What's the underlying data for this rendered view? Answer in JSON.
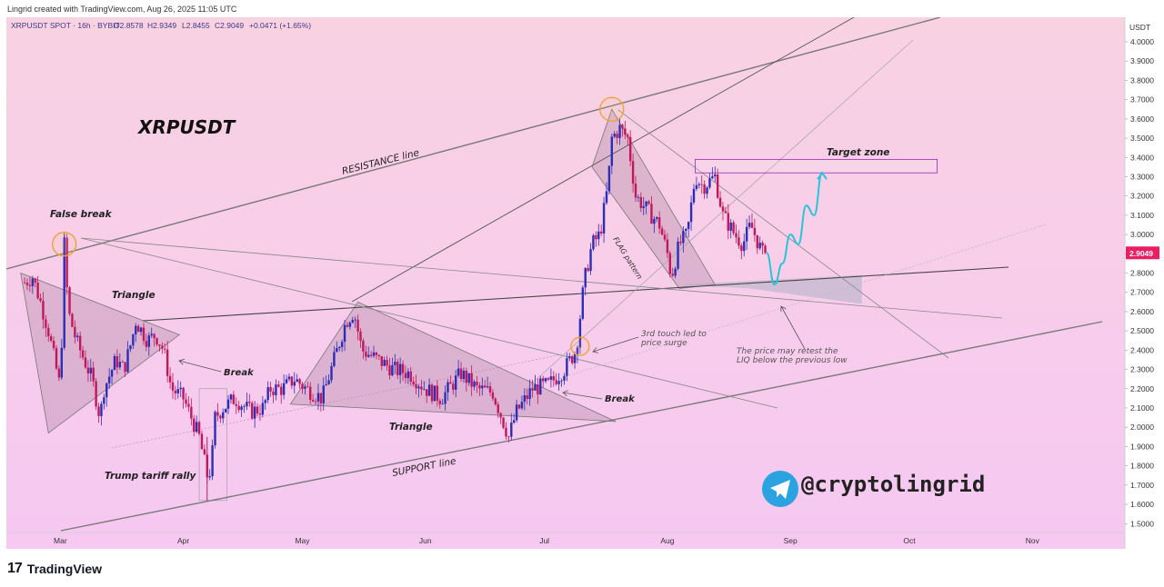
{
  "header": {
    "credit": "Lingrid created with TradingView.com, Aug 26, 2025 11:05 UTC"
  },
  "legend": {
    "symbol": "XRPUSDT SPOT · 16h · BYBIT",
    "open": "O2.8578",
    "high": "H2.9349",
    "low": "L2.8455",
    "close": "C2.9049",
    "change": "+0.0471 (+1.65%)"
  },
  "axis": {
    "currency": "USDT",
    "y_ticks": [
      "4.0000",
      "3.9000",
      "3.8000",
      "3.7000",
      "3.6000",
      "3.5000",
      "3.4000",
      "3.3000",
      "3.2000",
      "3.1000",
      "3.0000",
      "2.9000",
      "2.8000",
      "2.7000",
      "2.6000",
      "2.5000",
      "2.4000",
      "2.3000",
      "2.2000",
      "2.1000",
      "2.0000",
      "1.9000",
      "1.8000",
      "1.7000",
      "1.6000",
      "1.5000"
    ],
    "x_ticks": [
      "Mar",
      "Apr",
      "May",
      "Jun",
      "Jul",
      "Aug",
      "Sep",
      "Oct",
      "Nov"
    ],
    "last_price": "2.9049"
  },
  "annotations": {
    "title": "XRPUSDT",
    "resistance": "RESISTANCE line",
    "support": "SUPPORT line",
    "false_break": "False break",
    "triangle1": "Triangle",
    "break1": "Break",
    "trump": "Trump tariff rally",
    "triangle2": "Triangle",
    "break2": "Break",
    "third_touch_1": "3rd touch led to",
    "third_touch_2": "price surge",
    "flag": "FLAG pattern",
    "target": "Target zone",
    "retest_1": "The price may retest the",
    "retest_2": "LIQ below the previous low",
    "handle": "@cryptolingrid"
  },
  "footer": {
    "logo": "17",
    "brand": "TradingView"
  },
  "colors": {
    "bg_top": "#f9d2e2",
    "bg_bottom": "#f6c8f2",
    "candle_up": "#2b2fb8",
    "candle_down": "#c2185b",
    "last_price_bg": "#e91e63",
    "target_border": "#9c27b0",
    "projection": "#26c6da",
    "telegram": "#2aa3e0"
  },
  "chart_data": {
    "type": "candlestick",
    "title": "XRPUSDT",
    "symbol": "XRPUSDT",
    "timeframe": "16h",
    "exchange": "BYBIT",
    "ylim": [
      1.45,
      4.05
    ],
    "x_ticks": [
      "Mar",
      "Apr",
      "May",
      "Jun",
      "Jul",
      "Aug",
      "Sep",
      "Oct",
      "Nov"
    ],
    "close_path": [
      [
        "2025-02-20",
        2.75
      ],
      [
        "2025-02-22",
        2.78
      ],
      [
        "2025-02-24",
        2.65
      ],
      [
        "2025-02-26",
        2.5
      ],
      [
        "2025-02-28",
        2.3
      ],
      [
        "2025-03-01",
        2.2
      ],
      [
        "2025-03-02",
        2.95
      ],
      [
        "2025-03-03",
        2.6
      ],
      [
        "2025-03-05",
        2.45
      ],
      [
        "2025-03-07",
        2.35
      ],
      [
        "2025-03-09",
        2.25
      ],
      [
        "2025-03-11",
        2.05
      ],
      [
        "2025-03-12",
        2.2
      ],
      [
        "2025-03-15",
        2.35
      ],
      [
        "2025-03-17",
        2.3
      ],
      [
        "2025-03-19",
        2.45
      ],
      [
        "2025-03-20",
        2.55
      ],
      [
        "2025-03-23",
        2.45
      ],
      [
        "2025-03-25",
        2.48
      ],
      [
        "2025-03-27",
        2.4
      ],
      [
        "2025-03-29",
        2.2
      ],
      [
        "2025-04-01",
        2.15
      ],
      [
        "2025-04-03",
        2.05
      ],
      [
        "2025-04-05",
        1.95
      ],
      [
        "2025-04-07",
        1.75
      ],
      [
        "2025-04-08",
        1.78
      ],
      [
        "2025-04-09",
        2.05
      ],
      [
        "2025-04-11",
        2.1
      ],
      [
        "2025-04-14",
        2.15
      ],
      [
        "2025-04-18",
        2.08
      ],
      [
        "2025-04-21",
        2.1
      ],
      [
        "2025-04-23",
        2.2
      ],
      [
        "2025-04-26",
        2.2
      ],
      [
        "2025-04-29",
        2.25
      ],
      [
        "2025-05-02",
        2.2
      ],
      [
        "2025-05-06",
        2.15
      ],
      [
        "2025-05-09",
        2.35
      ],
      [
        "2025-05-12",
        2.55
      ],
      [
        "2025-05-14",
        2.6
      ],
      [
        "2025-05-16",
        2.4
      ],
      [
        "2025-05-20",
        2.35
      ],
      [
        "2025-05-24",
        2.3
      ],
      [
        "2025-05-28",
        2.28
      ],
      [
        "2025-06-01",
        2.2
      ],
      [
        "2025-06-05",
        2.15
      ],
      [
        "2025-06-10",
        2.28
      ],
      [
        "2025-06-14",
        2.2
      ],
      [
        "2025-06-18",
        2.18
      ],
      [
        "2025-06-22",
        1.95
      ],
      [
        "2025-06-24",
        2.08
      ],
      [
        "2025-06-28",
        2.2
      ],
      [
        "2025-07-02",
        2.22
      ],
      [
        "2025-07-06",
        2.3
      ],
      [
        "2025-07-09",
        2.4
      ],
      [
        "2025-07-11",
        2.75
      ],
      [
        "2025-07-13",
        2.95
      ],
      [
        "2025-07-15",
        3.0
      ],
      [
        "2025-07-17",
        3.25
      ],
      [
        "2025-07-18",
        3.5
      ],
      [
        "2025-07-20",
        3.55
      ],
      [
        "2025-07-22",
        3.5
      ],
      [
        "2025-07-24",
        3.2
      ],
      [
        "2025-07-26",
        3.15
      ],
      [
        "2025-07-28",
        3.1
      ],
      [
        "2025-07-30",
        3.05
      ],
      [
        "2025-08-01",
        2.9
      ],
      [
        "2025-08-02",
        2.78
      ],
      [
        "2025-08-04",
        2.95
      ],
      [
        "2025-08-06",
        3.0
      ],
      [
        "2025-08-08",
        3.3
      ],
      [
        "2025-08-10",
        3.25
      ],
      [
        "2025-08-13",
        3.3
      ],
      [
        "2025-08-15",
        3.1
      ],
      [
        "2025-08-18",
        3.0
      ],
      [
        "2025-08-20",
        2.95
      ],
      [
        "2025-08-22",
        3.05
      ],
      [
        "2025-08-25",
        2.9
      ],
      [
        "2025-08-26",
        2.9049
      ]
    ],
    "projection": [
      [
        "2025-08-26",
        2.9049
      ],
      [
        "2025-08-28",
        2.74
      ],
      [
        "2025-08-30",
        2.85
      ],
      [
        "2025-09-01",
        3.0
      ],
      [
        "2025-09-03",
        2.95
      ],
      [
        "2025-09-05",
        3.15
      ],
      [
        "2025-09-07",
        3.1
      ],
      [
        "2025-09-09",
        3.32
      ]
    ],
    "target_zone": {
      "y": [
        3.32,
        3.39
      ],
      "x": [
        "2025-08-08",
        "2025-10-08"
      ]
    },
    "key_points": [
      {
        "name": "False break",
        "date": "2025-03-02",
        "price": 2.95
      },
      {
        "name": "3rd touch",
        "date": "2025-07-10",
        "price": 2.42
      },
      {
        "name": "Top",
        "date": "2025-07-18",
        "price": 3.65
      }
    ],
    "last_price": 2.9049
  }
}
